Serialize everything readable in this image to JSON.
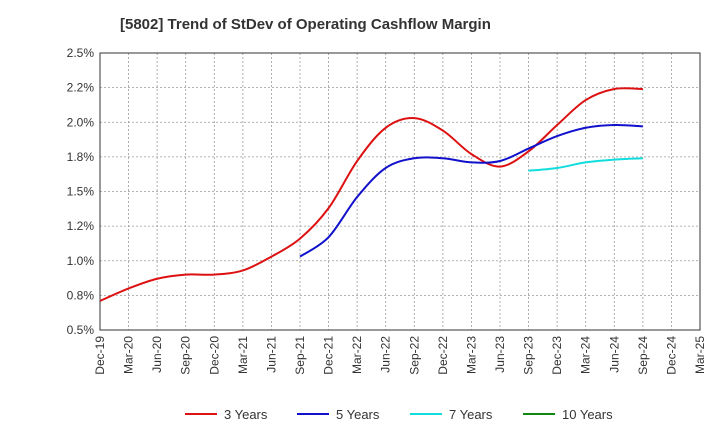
{
  "chart_data": {
    "type": "line",
    "title": "[5802]  Trend of StDev of Operating Cashflow Margin",
    "xlabel": "",
    "ylabel": "",
    "x_ticks": [
      "Dec-19",
      "Mar-20",
      "Jun-20",
      "Sep-20",
      "Dec-20",
      "Mar-21",
      "Jun-21",
      "Sep-21",
      "Dec-21",
      "Mar-22",
      "Jun-22",
      "Sep-22",
      "Dec-22",
      "Mar-23",
      "Jun-23",
      "Sep-23",
      "Dec-23",
      "Mar-24",
      "Jun-24",
      "Sep-24",
      "Dec-24",
      "Mar-25"
    ],
    "y_ticks": [
      "0.5%",
      "0.8%",
      "1.0%",
      "1.2%",
      "1.5%",
      "1.8%",
      "2.0%",
      "2.2%",
      "2.5%"
    ],
    "ylim": [
      0.5,
      2.5
    ],
    "grid": true,
    "legend_position": "bottom",
    "series": [
      {
        "name": "3 Years",
        "color": "#dd1111",
        "start_index": 0,
        "values": [
          0.71,
          0.8,
          0.87,
          0.9,
          0.9,
          0.93,
          1.03,
          1.16,
          1.38,
          1.72,
          1.96,
          2.03,
          1.94,
          1.77,
          1.68,
          1.79,
          1.98,
          2.16,
          2.24,
          2.24
        ]
      },
      {
        "name": "5 Years",
        "color": "#1111cc",
        "start_index": 7,
        "values": [
          1.03,
          1.17,
          1.46,
          1.67,
          1.74,
          1.74,
          1.71,
          1.72,
          1.81,
          1.9,
          1.96,
          1.98,
          1.97
        ]
      },
      {
        "name": "7 Years",
        "color": "#11dddd",
        "start_index": 15,
        "values": [
          1.65,
          1.67,
          1.71,
          1.73,
          1.74
        ]
      },
      {
        "name": "10 Years",
        "color": "#118811",
        "start_index": 0,
        "values": []
      }
    ]
  }
}
